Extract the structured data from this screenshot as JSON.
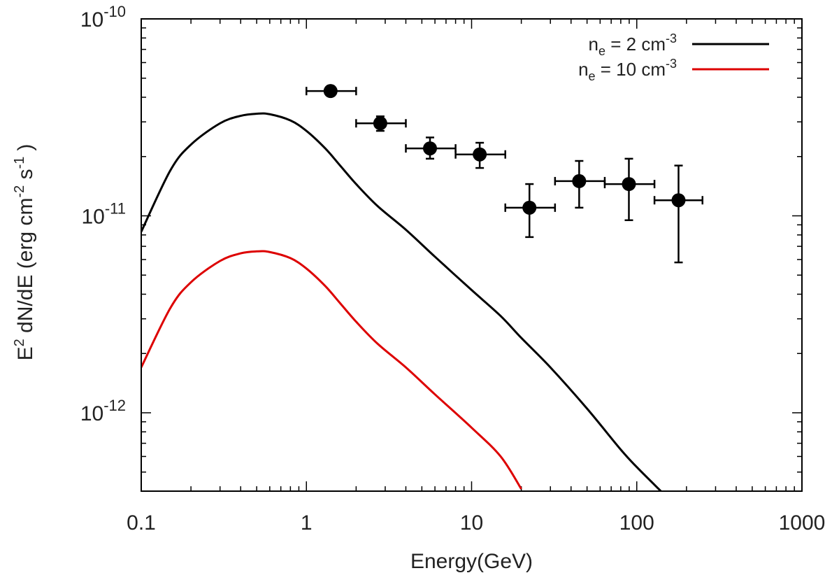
{
  "chart_data": {
    "type": "line",
    "xlabel": "Energy(GeV)",
    "ylabel": {
      "main": "E",
      "sup": "2",
      "rest": " dN/dE (erg cm",
      "sup2": "-2",
      "mid": " s",
      "sup3": "-1",
      "end": ")"
    },
    "xscale": "log",
    "yscale": "log",
    "xlim": [
      0.1,
      1000
    ],
    "ylim": [
      4e-13,
      1e-10
    ],
    "grid": false,
    "legend_position": "top-right",
    "x_ticks": [
      {
        "value": 0.1,
        "label": "0.1"
      },
      {
        "value": 1,
        "label": "1"
      },
      {
        "value": 10,
        "label": "10"
      },
      {
        "value": 100,
        "label": "100"
      },
      {
        "value": 1000,
        "label": "1000"
      }
    ],
    "y_ticks": [
      {
        "value": 1e-10,
        "base": "10",
        "exp": "-10"
      },
      {
        "value": 1e-11,
        "base": "10",
        "exp": "-11"
      },
      {
        "value": 1e-12,
        "base": "10",
        "exp": "-12"
      }
    ],
    "series": [
      {
        "name": "n_e = 2 cm^-3",
        "label": {
          "base": "n",
          "sub": "e",
          "mid": " = 2 cm",
          "sup": "-3"
        },
        "color": "#000000",
        "points": [
          [
            0.1,
            8.3e-12
          ],
          [
            0.15,
            1.7e-11
          ],
          [
            0.2,
            2.3e-11
          ],
          [
            0.3,
            2.95e-11
          ],
          [
            0.4,
            3.22e-11
          ],
          [
            0.5,
            3.3e-11
          ],
          [
            0.6,
            3.28e-11
          ],
          [
            0.8,
            3.05e-11
          ],
          [
            1.0,
            2.7e-11
          ],
          [
            1.3,
            2.2e-11
          ],
          [
            1.6,
            1.8e-11
          ],
          [
            2.0,
            1.45e-11
          ],
          [
            2.7,
            1.12e-11
          ],
          [
            4.0,
            8.5e-12
          ],
          [
            6.0,
            6.2e-12
          ],
          [
            10,
            4.2e-12
          ],
          [
            15,
            3.1e-12
          ],
          [
            20,
            2.4e-12
          ],
          [
            30,
            1.7e-12
          ],
          [
            50,
            1.05e-12
          ],
          [
            80,
            6.5e-13
          ],
          [
            100,
            5.3e-13
          ],
          [
            140,
            4e-13
          ]
        ]
      },
      {
        "name": "n_e = 10 cm^-3",
        "label": {
          "base": "n",
          "sub": "e",
          "mid": " = 10 cm",
          "sup": "-3"
        },
        "color": "#dd0000",
        "points": [
          [
            0.1,
            1.7e-12
          ],
          [
            0.15,
            3.4e-12
          ],
          [
            0.2,
            4.6e-12
          ],
          [
            0.3,
            5.9e-12
          ],
          [
            0.4,
            6.45e-12
          ],
          [
            0.5,
            6.6e-12
          ],
          [
            0.6,
            6.55e-12
          ],
          [
            0.8,
            6.1e-12
          ],
          [
            1.0,
            5.4e-12
          ],
          [
            1.3,
            4.4e-12
          ],
          [
            1.6,
            3.6e-12
          ],
          [
            2.0,
            2.9e-12
          ],
          [
            2.7,
            2.24e-12
          ],
          [
            4.0,
            1.7e-12
          ],
          [
            6.0,
            1.24e-12
          ],
          [
            10,
            8.4e-13
          ],
          [
            15,
            6e-13
          ],
          [
            20,
            4.1e-13
          ]
        ]
      }
    ],
    "data_points": [
      {
        "x": 1.4,
        "y": 4.3e-11,
        "xlo": 1.0,
        "xhi": 2.0,
        "ylo": 4.15e-11,
        "yhi": 4.45e-11
      },
      {
        "x": 2.8,
        "y": 2.95e-11,
        "xlo": 2.0,
        "xhi": 4.0,
        "ylo": 2.7e-11,
        "yhi": 3.2e-11
      },
      {
        "x": 5.6,
        "y": 2.2e-11,
        "xlo": 4.0,
        "xhi": 8.0,
        "ylo": 1.95e-11,
        "yhi": 2.5e-11
      },
      {
        "x": 11.2,
        "y": 2.05e-11,
        "xlo": 8.0,
        "xhi": 16.0,
        "ylo": 1.75e-11,
        "yhi": 2.35e-11
      },
      {
        "x": 22.4,
        "y": 1.1e-11,
        "xlo": 16.0,
        "xhi": 32.0,
        "ylo": 7.8e-12,
        "yhi": 1.45e-11
      },
      {
        "x": 44.8,
        "y": 1.5e-11,
        "xlo": 32.0,
        "xhi": 64.0,
        "ylo": 1.1e-11,
        "yhi": 1.9e-11
      },
      {
        "x": 89.6,
        "y": 1.45e-11,
        "xlo": 64.0,
        "xhi": 128.0,
        "ylo": 9.5e-12,
        "yhi": 1.95e-11
      },
      {
        "x": 179,
        "y": 1.2e-11,
        "xlo": 128.0,
        "xhi": 250.0,
        "ylo": 5.8e-12,
        "yhi": 1.8e-11
      }
    ]
  }
}
